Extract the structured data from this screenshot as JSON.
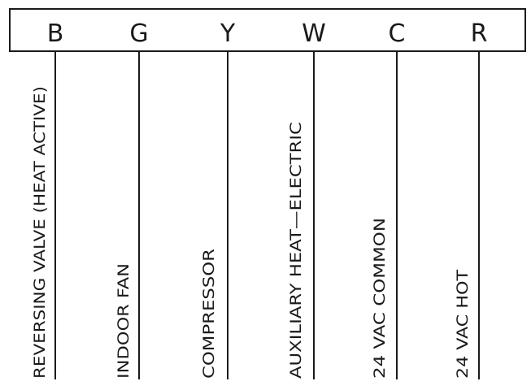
{
  "terminals": [
    {
      "letter": "B",
      "label": "REVERSING VALVE (HEAT ACTIVE)"
    },
    {
      "letter": "G",
      "label": "INDOOR FAN"
    },
    {
      "letter": "Y",
      "label": "COMPRESSOR"
    },
    {
      "letter": "W",
      "label": "AUXILIARY HEAT—ELECTRIC"
    },
    {
      "letter": "C",
      "label": "24 VAC COMMON"
    },
    {
      "letter": "R",
      "label": "24 VAC HOT"
    }
  ],
  "colors": {
    "line": "#1a1a1a",
    "text": "#1a1a1a",
    "background": "#ffffff"
  }
}
